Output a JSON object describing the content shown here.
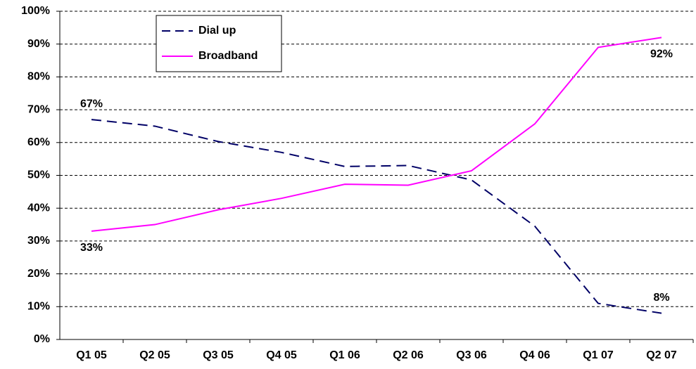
{
  "chart_data": {
    "type": "line",
    "categories": [
      "Q1 05",
      "Q2 05",
      "Q3 05",
      "Q4 05",
      "Q1 06",
      "Q2 06",
      "Q3 06",
      "Q4 06",
      "Q1 07",
      "Q2 07"
    ],
    "series": [
      {
        "name": "Dial up",
        "color": "#000066",
        "dash": true,
        "values": [
          67,
          65,
          60.3,
          57,
          52.7,
          53,
          48.6,
          34.5,
          11,
          8
        ],
        "value_labels": [
          "67%",
          null,
          null,
          null,
          null,
          null,
          null,
          null,
          null,
          "8%"
        ]
      },
      {
        "name": "Broadband",
        "color": "#ff00ff",
        "dash": false,
        "values": [
          33,
          35,
          39.5,
          43,
          47.3,
          47,
          51.4,
          65.7,
          89,
          92
        ],
        "value_labels": [
          "33%",
          null,
          null,
          null,
          null,
          null,
          null,
          null,
          null,
          "92%"
        ]
      }
    ],
    "ylim": [
      0,
      100
    ],
    "yticks": [
      {
        "value": 0,
        "label": "0%"
      },
      {
        "value": 10,
        "label": "10%"
      },
      {
        "value": 20,
        "label": "20%"
      },
      {
        "value": 30,
        "label": "30%"
      },
      {
        "value": 40,
        "label": "40%"
      },
      {
        "value": 50,
        "label": "50%"
      },
      {
        "value": 60,
        "label": "60%"
      },
      {
        "value": 70,
        "label": "70%"
      },
      {
        "value": 80,
        "label": "80%"
      },
      {
        "value": 90,
        "label": "90%"
      },
      {
        "value": 100,
        "label": "100%"
      }
    ],
    "grid": true,
    "legend": "upper left"
  }
}
